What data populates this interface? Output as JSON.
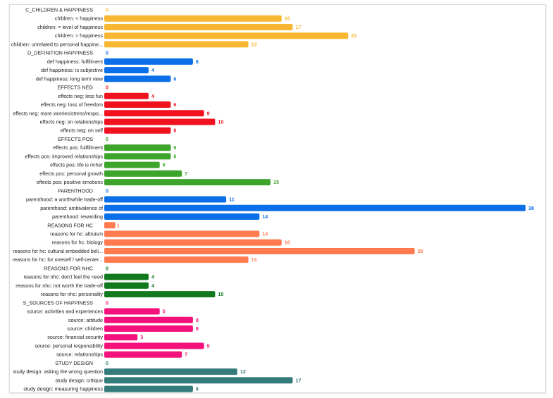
{
  "chart_data": {
    "type": "bar",
    "orientation": "horizontal",
    "title": "",
    "xlabel": "",
    "ylabel": "",
    "xlim": [
      0,
      38
    ],
    "grid": false,
    "legend": "none",
    "groups": [
      {
        "name": "C_CHILDREN & HAPPINESS",
        "value": 0,
        "color": "#f7b731",
        "items": [
          {
            "label": "children: < happiness",
            "value": 16
          },
          {
            "label": "children: = level of happiness",
            "value": 17
          },
          {
            "label": "children: > happiness",
            "value": 22
          },
          {
            "label": "children: unrelated to personal happine...",
            "value": 13
          }
        ]
      },
      {
        "name": "D_DEFINITION HAPPINESS",
        "value": 0,
        "color": "#0a6fe8",
        "items": [
          {
            "label": "def happiness: fulfillment",
            "value": 8
          },
          {
            "label": "def happiness: is subjective",
            "value": 4
          },
          {
            "label": "def happiness: long term view",
            "value": 6
          }
        ]
      },
      {
        "name": "EFFECTS NEG",
        "value": 0,
        "color": "#f0121e",
        "items": [
          {
            "label": "effects neg: less fun",
            "value": 4
          },
          {
            "label": "effects neg: loss of freedom",
            "value": 6
          },
          {
            "label": "effects neg: more worries/stress/respo...",
            "value": 9
          },
          {
            "label": "effects neg: on relationships",
            "value": 10
          },
          {
            "label": "effects neg: on self",
            "value": 6
          }
        ]
      },
      {
        "name": "EFFECTS POS",
        "value": 0,
        "color": "#3da52b",
        "items": [
          {
            "label": "effects pos: fullfillment",
            "value": 6
          },
          {
            "label": "effects pos: improved relationships",
            "value": 6
          },
          {
            "label": "effects pos: life is richer",
            "value": 5
          },
          {
            "label": "effects pos: personal growth",
            "value": 7
          },
          {
            "label": "effects pos: positive emotions",
            "value": 15
          }
        ]
      },
      {
        "name": "PARENTHOOD",
        "value": 0,
        "color": "#0a6fe8",
        "items": [
          {
            "label": "parenthood: a worthwhile trade-off",
            "value": 11
          },
          {
            "label": "parenthood: ambivalence of",
            "value": 38
          },
          {
            "label": "parenthood: rewarding",
            "value": 14
          }
        ]
      },
      {
        "name": "REASONS FOR HC",
        "value": 1,
        "color": "#ff7b4f",
        "items": [
          {
            "label": "reasons for hc: altruism",
            "value": 14
          },
          {
            "label": "reasons for hc: biology",
            "value": 16
          },
          {
            "label": "reasons for hc: cultural embedded beli...",
            "value": 28
          },
          {
            "label": "reasons for hc: for oneself / self-center...",
            "value": 13
          }
        ]
      },
      {
        "name": "REASONS FOR NHC",
        "value": 0,
        "color": "#12791f",
        "items": [
          {
            "label": "reasons for nhc: don't feel the need",
            "value": 4
          },
          {
            "label": "reasons for nhc: not worth the trade-off",
            "value": 4
          },
          {
            "label": "reasons for nhc: personality",
            "value": 10
          }
        ]
      },
      {
        "name": "S_SOURCES OF HAPPINESS",
        "value": 0,
        "color": "#f5117c",
        "items": [
          {
            "label": "source: activities and experiences",
            "value": 5
          },
          {
            "label": "source: attitude",
            "value": 8
          },
          {
            "label": "source: children",
            "value": 8
          },
          {
            "label": "source: financial security",
            "value": 3
          },
          {
            "label": "source: personal responsibility",
            "value": 9
          },
          {
            "label": "source: relationships",
            "value": 7
          }
        ]
      },
      {
        "name": "STUDY DESIGN",
        "value": 0,
        "color": "#347c7a",
        "items": [
          {
            "label": "study design: asking the wrong question",
            "value": 12
          },
          {
            "label": "study design: critique",
            "value": 17
          },
          {
            "label": "study design: measuring happiness",
            "value": 8
          }
        ]
      }
    ]
  }
}
